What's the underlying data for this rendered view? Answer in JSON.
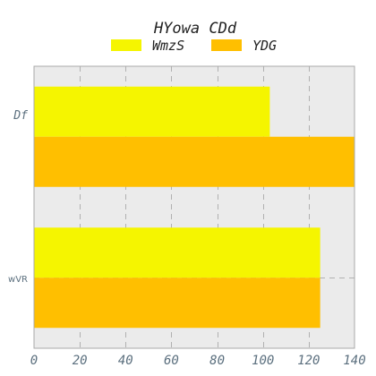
{
  "chart_data": {
    "type": "bar",
    "orientation": "horizontal",
    "title": "HYowa CDd",
    "xlabel": "",
    "ylabel": "",
    "categories": [
      "Df",
      "wVR"
    ],
    "series": [
      {
        "name": "WmzS",
        "values": [
          103,
          125
        ],
        "color": "#f5f500"
      },
      {
        "name": "YDG",
        "values": [
          140,
          125
        ],
        "color": "#ffbf00"
      }
    ],
    "xlim": [
      0,
      140
    ],
    "xticks": [
      "0",
      "20",
      "40",
      "60",
      "80",
      "100",
      "120",
      "140"
    ],
    "grid": true,
    "legend_position": "top",
    "plot_background": "#ebebeb"
  }
}
